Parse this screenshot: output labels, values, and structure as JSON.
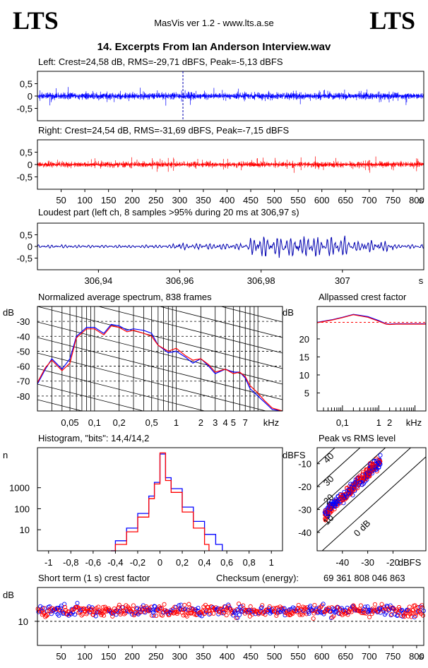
{
  "header": {
    "brand_left": "LTS",
    "brand_right": "LTS",
    "subtitle": "MasVis ver 1.2 - www.lts.a.se",
    "title": "14. Excerpts From Ian Anderson Interview.wav"
  },
  "colors": {
    "left": "#0000ff",
    "right": "#ff0000",
    "dark": "#0000b0"
  },
  "chart_data": [
    {
      "type": "line",
      "name": "left-waveform",
      "title": "Left: Crest=24,58 dB, RMS=-29,71 dBFS, Peak=-5,13 dBFS",
      "ylim": [
        -1,
        1
      ],
      "yticks": [
        "0,5",
        "0",
        "-0,5"
      ],
      "ytick_values": [
        0.5,
        0,
        -0.5
      ],
      "xlim": [
        0,
        815
      ],
      "marker_x": 306.97,
      "envelope": {
        "rms": 0.12,
        "peak_positive": 0.45,
        "peak_negative": -0.55
      }
    },
    {
      "type": "line",
      "name": "right-waveform",
      "title": "Right: Crest=24,54 dB, RMS=-31,69 dBFS, Peak=-7,15 dBFS",
      "ylim": [
        -1,
        1
      ],
      "yticks": [
        "0,5",
        "0",
        "-0,5"
      ],
      "ytick_values": [
        0.5,
        0,
        -0.5
      ],
      "xlim": [
        0,
        815
      ],
      "xticks": [
        50,
        100,
        150,
        200,
        250,
        300,
        350,
        400,
        450,
        500,
        550,
        600,
        650,
        700,
        750,
        800
      ],
      "xunit": "s",
      "envelope": {
        "rms": 0.1,
        "peak_positive": 0.4,
        "peak_negative": -0.35
      }
    },
    {
      "type": "line",
      "name": "loudest-part",
      "title": "Loudest part (left  ch, 8 samples >95% during 20 ms at 306,97 s)",
      "xlim": [
        306.925,
        307.02
      ],
      "ylim": [
        -1,
        1
      ],
      "yticks": [
        "0,5",
        "0",
        "-0,5"
      ],
      "ytick_values": [
        0.5,
        0,
        -0.5
      ],
      "xticks": [
        "306,94",
        "306,96",
        "306,98",
        "307"
      ],
      "xtick_values": [
        306.94,
        306.96,
        306.98,
        307.0
      ],
      "xunit": "s"
    },
    {
      "type": "line",
      "name": "spectrum",
      "title": "Normalized average spectrum, 838 frames",
      "ylabel": "dB",
      "xunit": "kHz",
      "ylim": [
        -90,
        -20
      ],
      "yticks": [
        -30,
        -40,
        -50,
        -60,
        -70,
        -80
      ],
      "xlim_khz": [
        0.02,
        20
      ],
      "log_x": true,
      "xticks": [
        "0,05",
        "0,1",
        "0,2",
        "0,5",
        "1",
        "2",
        "3",
        "4",
        "5",
        "7"
      ],
      "xtick_values": [
        0.05,
        0.1,
        0.2,
        0.5,
        1,
        2,
        3,
        4,
        5,
        7
      ],
      "series": [
        {
          "color": "left",
          "x": [
            0.02,
            0.025,
            0.03,
            0.04,
            0.05,
            0.06,
            0.08,
            0.1,
            0.13,
            0.16,
            0.2,
            0.25,
            0.3,
            0.4,
            0.5,
            0.6,
            0.8,
            1,
            1.3,
            1.6,
            2,
            2.5,
            3,
            4,
            5,
            6,
            7,
            8,
            10,
            12,
            15,
            20
          ],
          "y": [
            -72,
            -62,
            -55,
            -62,
            -55,
            -40,
            -34,
            -34,
            -38,
            -32,
            -33,
            -36,
            -35,
            -36,
            -38,
            -46,
            -51,
            -50,
            -54,
            -58,
            -55,
            -60,
            -65,
            -62,
            -64,
            -64,
            -68,
            -75,
            -80,
            -84,
            -89,
            -90
          ]
        },
        {
          "color": "right",
          "x": [
            0.02,
            0.025,
            0.03,
            0.04,
            0.05,
            0.06,
            0.08,
            0.1,
            0.13,
            0.16,
            0.2,
            0.25,
            0.3,
            0.4,
            0.5,
            0.6,
            0.8,
            1,
            1.3,
            1.6,
            2,
            2.5,
            3,
            4,
            5,
            6,
            7,
            8,
            10,
            12,
            15,
            20
          ],
          "y": [
            -71,
            -61,
            -56,
            -63,
            -58,
            -41,
            -35,
            -35,
            -39,
            -33,
            -34,
            -37,
            -36,
            -38,
            -40,
            -46,
            -50,
            -48,
            -53,
            -56,
            -55,
            -59,
            -64,
            -62,
            -65,
            -64,
            -67,
            -73,
            -78,
            -83,
            -88,
            -90
          ]
        }
      ]
    },
    {
      "type": "line",
      "name": "allpassed-crest",
      "title": "Allpassed crest factor",
      "ylabel": "dB",
      "xunit": "kHz",
      "ylim": [
        0,
        29
      ],
      "yticks": [
        20,
        15,
        10,
        5
      ],
      "xticks": [
        "0,1",
        "1",
        "2"
      ],
      "xtick_values": [
        0.1,
        1,
        2
      ],
      "reference": 24.6,
      "series": [
        {
          "color": "left",
          "x": [
            0.02,
            0.05,
            0.1,
            0.2,
            0.5,
            1,
            1.6,
            2,
            3,
            5,
            10,
            20
          ],
          "y": [
            24.6,
            25.3,
            26.0,
            26.8,
            26.2,
            25.1,
            24.2,
            24.1,
            24.2,
            24.2,
            24.2,
            24.2
          ]
        },
        {
          "color": "right",
          "x": [
            0.02,
            0.05,
            0.1,
            0.2,
            0.5,
            1,
            1.6,
            2,
            3,
            5,
            10,
            20
          ],
          "y": [
            24.5,
            25.2,
            25.9,
            26.7,
            26.0,
            24.9,
            24.1,
            24.0,
            24.1,
            24.1,
            24.1,
            24.1
          ]
        }
      ]
    },
    {
      "type": "line",
      "name": "histogram",
      "title": "Histogram, \"bits\": 14,4/14,2",
      "ylabel": "n",
      "yticks": [
        "1000",
        "100",
        "10"
      ],
      "ytick_values": [
        1000,
        100,
        10
      ],
      "xticks": [
        "-1",
        "-0,8",
        "-0,6",
        "-0,4",
        "-0,2",
        "0",
        "0,2",
        "0,4",
        "0,6",
        "0,8",
        "1"
      ],
      "xtick_values": [
        -1,
        -0.8,
        -0.6,
        -0.4,
        -0.2,
        0,
        0.2,
        0.4,
        0.6,
        0.8,
        1
      ],
      "xlim": [
        -1.1,
        1.1
      ],
      "ylim_log": [
        1,
        80000
      ],
      "series": [
        {
          "color": "left",
          "x": [
            -0.44,
            -0.4,
            -0.3,
            -0.2,
            -0.1,
            -0.05,
            0,
            0.05,
            0.1,
            0.2,
            0.3,
            0.4,
            0.5,
            0.56
          ],
          "y": [
            1,
            3,
            12,
            60,
            400,
            1800,
            40000,
            3000,
            900,
            120,
            25,
            6,
            2,
            1
          ]
        },
        {
          "color": "right",
          "x": [
            -0.44,
            -0.4,
            -0.3,
            -0.2,
            -0.1,
            -0.05,
            0,
            0.05,
            0.1,
            0.2,
            0.3,
            0.4,
            0.44
          ],
          "y": [
            1,
            2,
            8,
            40,
            300,
            1500,
            45000,
            2200,
            600,
            70,
            12,
            2,
            1
          ]
        }
      ]
    },
    {
      "type": "scatter",
      "name": "peak-vs-rms",
      "title": "Peak vs RMS level",
      "ylabel": "dBFS",
      "xunit": "dBFS",
      "xlim": [
        -50,
        -7
      ],
      "ylim": [
        -48,
        -3
      ],
      "xticks": [
        -40,
        -30,
        -20
      ],
      "yticks": [
        -10,
        -20,
        -30,
        -40
      ],
      "crest_lines": [
        "0 dB",
        "10",
        "20",
        "30",
        "40"
      ],
      "cluster": {
        "x_range": [
          -47,
          -25
        ],
        "y_range": [
          -32,
          -9
        ]
      }
    },
    {
      "type": "scatter",
      "name": "short-term-crest",
      "title": "Short term (1 s) crest factor",
      "ylabel": "dB",
      "yticks": [
        10
      ],
      "ytick_values": [
        10
      ],
      "xlim": [
        0,
        815
      ],
      "ylim": [
        0,
        24
      ],
      "xticks": [
        50,
        100,
        150,
        200,
        250,
        300,
        350,
        400,
        450,
        500,
        550,
        600,
        650,
        700,
        750,
        800
      ],
      "xunit": "s",
      "checksum_label": "Checksum (energy):",
      "checksum_value": "69 361 808 046 863",
      "spread": {
        "mean": 14.5,
        "min": 10.5,
        "max": 21
      }
    }
  ]
}
